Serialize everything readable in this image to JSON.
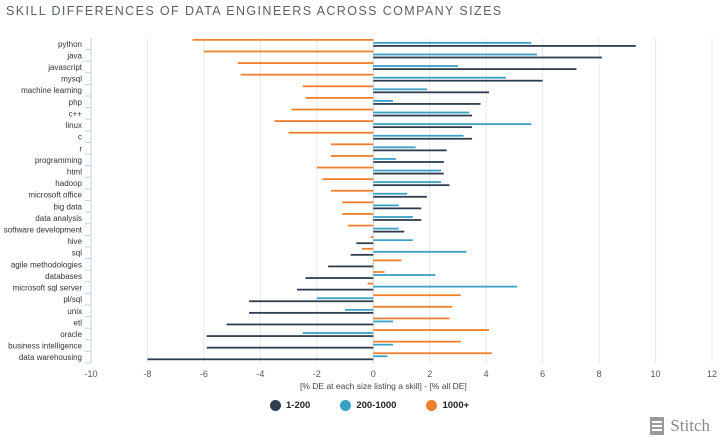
{
  "title": "SKILL DIFFERENCES OF DATA ENGINEERS ACROSS COMPANY SIZES",
  "logo_text": "Stitch",
  "chart_data": {
    "type": "bar",
    "orientation": "horizontal",
    "title": "SKILL DIFFERENCES OF DATA ENGINEERS ACROSS COMPANY SIZES",
    "xlabel": "[% DE at each size listing a skill] - [% all DE]",
    "ylabel": "",
    "xlim": [
      -10,
      12
    ],
    "xticks": [
      -10,
      -8,
      -6,
      -4,
      -2,
      0,
      2,
      4,
      6,
      8,
      10,
      12
    ],
    "grid": "vertical",
    "legend_position": "bottom",
    "categories": [
      "python",
      "java",
      "javascript",
      "mysql",
      "machine learning",
      "php",
      "c++",
      "linux",
      "c",
      "r",
      "programming",
      "html",
      "hadoop",
      "microsoft office",
      "big data",
      "data analysis",
      "software development",
      "hive",
      "sql",
      "agile methodologies",
      "databases",
      "microsoft sql server",
      "pl/sql",
      "unix",
      "etl",
      "oracle",
      "business intelligence",
      "data warehousing"
    ],
    "series": [
      {
        "name": "1-200",
        "color": "#2e3d4f",
        "values": [
          9.3,
          8.1,
          7.2,
          6.0,
          4.1,
          3.8,
          3.5,
          3.5,
          3.5,
          2.6,
          2.5,
          2.5,
          2.7,
          1.9,
          1.7,
          1.7,
          1.1,
          -0.6,
          -0.8,
          -1.6,
          -2.4,
          -2.7,
          -4.4,
          -4.4,
          -5.2,
          -5.9,
          -5.9,
          -8.0
        ]
      },
      {
        "name": "200-1000",
        "color": "#3aa0c8",
        "values": [
          5.6,
          5.8,
          3.0,
          4.7,
          1.9,
          0.7,
          3.4,
          5.6,
          3.2,
          1.5,
          0.8,
          2.4,
          2.4,
          1.2,
          0.9,
          1.4,
          0.9,
          1.4,
          3.3,
          0.0,
          2.2,
          5.1,
          -2.0,
          -1.0,
          0.7,
          -2.5,
          0.7,
          0.5
        ]
      },
      {
        "name": "1000+",
        "color": "#f07f2c",
        "values": [
          -6.4,
          -6.0,
          -4.8,
          -4.7,
          -2.5,
          -2.4,
          -2.9,
          -3.5,
          -3.0,
          -1.5,
          -1.5,
          -2.0,
          -1.8,
          -1.5,
          -1.1,
          -1.1,
          -0.9,
          -0.1,
          -0.4,
          1.0,
          0.4,
          -0.2,
          3.1,
          2.8,
          2.7,
          4.1,
          3.1,
          4.2
        ]
      }
    ]
  }
}
